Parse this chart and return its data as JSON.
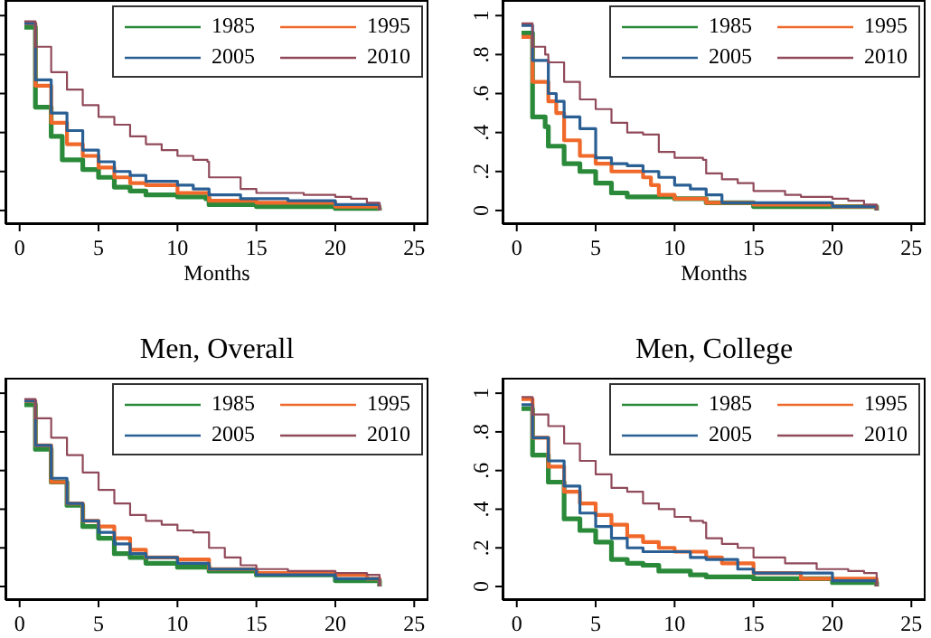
{
  "chart_data": [
    {
      "type": "step",
      "xlabel": "Months",
      "xlim": [
        -0.9,
        25.9
      ],
      "xticks": [
        0,
        5,
        10,
        15,
        20,
        25
      ],
      "ylim": [
        -0.07,
        1.08
      ],
      "yticks": [
        {
          "value": 0,
          "label": null
        },
        {
          "value": 0.2,
          "label": null
        },
        {
          "value": 0.4,
          "label": null
        },
        {
          "value": 0.6,
          "label": null
        },
        {
          "value": 0.8,
          "label": null
        },
        {
          "value": 1,
          "label": null
        }
      ],
      "tick_labels": "x",
      "legend": "top right",
      "marker": "none",
      "line_style": "solid",
      "series": [
        {
          "name": "1985",
          "color": "#2a8a3a",
          "x": [
            0.3,
            1,
            2,
            2.7,
            4,
            5,
            6,
            7,
            8,
            10,
            11.8,
            12,
            15,
            20,
            22.8
          ],
          "values": [
            0.94,
            0.53,
            0.38,
            0.26,
            0.21,
            0.17,
            0.12,
            0.1,
            0.08,
            0.07,
            0.06,
            0.03,
            0.02,
            0.01,
            0
          ]
        },
        {
          "name": "1995",
          "color": "#f0692a",
          "x": [
            0.3,
            1,
            2,
            3,
            4,
            5,
            6,
            7,
            8,
            10,
            12,
            15,
            20,
            22.8
          ],
          "values": [
            0.96,
            0.64,
            0.45,
            0.34,
            0.28,
            0.22,
            0.17,
            0.14,
            0.13,
            0.09,
            0.05,
            0.04,
            0.02,
            0
          ]
        },
        {
          "name": "2005",
          "color": "#2a5f94",
          "x": [
            0.3,
            1,
            2,
            3,
            4,
            5,
            6,
            7,
            8,
            10,
            11,
            12,
            14,
            17,
            20,
            22.8
          ],
          "values": [
            0.96,
            0.67,
            0.5,
            0.41,
            0.31,
            0.25,
            0.2,
            0.18,
            0.15,
            0.13,
            0.11,
            0.08,
            0.06,
            0.05,
            0.03,
            0
          ]
        },
        {
          "name": "2010",
          "color": "#904a5a",
          "x": [
            0.3,
            1,
            2,
            3,
            4,
            5,
            6,
            7,
            8,
            9,
            10,
            11,
            11.9,
            12,
            14,
            15,
            18,
            20,
            21,
            22,
            22.8
          ],
          "values": [
            0.97,
            0.84,
            0.71,
            0.62,
            0.54,
            0.48,
            0.44,
            0.38,
            0.34,
            0.31,
            0.28,
            0.26,
            0.25,
            0.17,
            0.11,
            0.09,
            0.08,
            0.07,
            0.06,
            0.04,
            0
          ]
        }
      ]
    },
    {
      "type": "step",
      "xlabel": "Months",
      "xlim": [
        -0.9,
        25.9
      ],
      "xticks": [
        0,
        5,
        10,
        15,
        20,
        25
      ],
      "ylim": [
        -0.07,
        1.08
      ],
      "yticks": [
        {
          "value": 0,
          "label": "0"
        },
        {
          "value": 0.2,
          "label": ".2"
        },
        {
          "value": 0.4,
          "label": ".4"
        },
        {
          "value": 0.6,
          "label": ".6"
        },
        {
          "value": 0.8,
          "label": ".8"
        },
        {
          "value": 1,
          "label": "1"
        }
      ],
      "legend": "top right",
      "marker": "none",
      "line_style": "solid",
      "series": [
        {
          "name": "1985",
          "color": "#2a8a3a",
          "x": [
            0.3,
            1,
            1.8,
            2,
            3,
            4,
            5,
            6,
            7,
            10,
            12,
            15,
            22.8
          ],
          "values": [
            0.91,
            0.48,
            0.43,
            0.33,
            0.24,
            0.2,
            0.14,
            0.09,
            0.07,
            0.06,
            0.04,
            0.02,
            0
          ]
        },
        {
          "name": "1995",
          "color": "#f0692a",
          "x": [
            0.3,
            1,
            2,
            2.5,
            3,
            4,
            5,
            6,
            8,
            8.5,
            9,
            10,
            12,
            15,
            20,
            22.8
          ],
          "values": [
            0.89,
            0.66,
            0.56,
            0.5,
            0.36,
            0.28,
            0.24,
            0.2,
            0.17,
            0.13,
            0.08,
            0.06,
            0.04,
            0.03,
            0.02,
            0
          ]
        },
        {
          "name": "2005",
          "color": "#2a5f94",
          "x": [
            0.3,
            1,
            2,
            2.5,
            3,
            4,
            5,
            6,
            7,
            8,
            9,
            10,
            11,
            12,
            13,
            15,
            20,
            22.8
          ],
          "values": [
            0.95,
            0.77,
            0.6,
            0.56,
            0.48,
            0.42,
            0.27,
            0.24,
            0.23,
            0.2,
            0.17,
            0.13,
            0.11,
            0.08,
            0.04,
            0.04,
            0.02,
            0
          ]
        },
        {
          "name": "2010",
          "color": "#904a5a",
          "x": [
            0.3,
            1,
            1.8,
            2,
            3,
            4,
            5,
            6,
            7,
            8,
            9,
            10,
            11.8,
            12,
            13,
            14,
            15,
            17,
            18,
            20,
            21,
            22,
            22.8
          ],
          "values": [
            0.96,
            0.84,
            0.8,
            0.76,
            0.66,
            0.57,
            0.52,
            0.45,
            0.4,
            0.39,
            0.3,
            0.27,
            0.26,
            0.19,
            0.16,
            0.14,
            0.1,
            0.08,
            0.07,
            0.06,
            0.05,
            0.03,
            0
          ]
        }
      ]
    },
    {
      "type": "step",
      "title": "Men, Overall",
      "xlim": [
        -0.9,
        25.9
      ],
      "xticks": [
        0,
        5,
        10,
        15,
        20,
        25
      ],
      "ylim": [
        -0.07,
        1.08
      ],
      "yticks": [
        {
          "value": 0,
          "label": null
        },
        {
          "value": 0.2,
          "label": null
        },
        {
          "value": 0.4,
          "label": null
        },
        {
          "value": 0.6,
          "label": null
        },
        {
          "value": 0.8,
          "label": null
        },
        {
          "value": 1,
          "label": null
        }
      ],
      "tick_labels": "x",
      "legend": "top right",
      "marker": "none",
      "line_style": "solid",
      "series": [
        {
          "name": "1985",
          "color": "#2a8a3a",
          "x": [
            0.3,
            1,
            2,
            3,
            4,
            5,
            6,
            7,
            8,
            10,
            12,
            15,
            20,
            22.8
          ],
          "values": [
            0.94,
            0.71,
            0.54,
            0.42,
            0.31,
            0.25,
            0.17,
            0.15,
            0.12,
            0.1,
            0.08,
            0.06,
            0.03,
            0
          ]
        },
        {
          "name": "1995",
          "color": "#f0692a",
          "x": [
            0.3,
            1,
            2,
            3,
            4,
            5,
            6,
            7,
            8,
            10,
            12,
            15,
            20,
            22,
            22.8
          ],
          "values": [
            0.96,
            0.73,
            0.54,
            0.43,
            0.34,
            0.31,
            0.25,
            0.19,
            0.15,
            0.14,
            0.09,
            0.07,
            0.06,
            0.04,
            0
          ]
        },
        {
          "name": "2005",
          "color": "#2a5f94",
          "x": [
            0.3,
            1,
            2,
            3,
            4,
            5,
            6,
            7,
            8,
            10,
            12,
            15,
            20,
            22.8
          ],
          "values": [
            0.96,
            0.73,
            0.56,
            0.43,
            0.34,
            0.28,
            0.22,
            0.17,
            0.15,
            0.12,
            0.09,
            0.06,
            0.04,
            0
          ]
        },
        {
          "name": "2010",
          "color": "#904a5a",
          "x": [
            0.3,
            1,
            2,
            3,
            4,
            5,
            6,
            7,
            8,
            9,
            10,
            11,
            12,
            13,
            14,
            15,
            17,
            20,
            22,
            22.8
          ],
          "values": [
            0.97,
            0.87,
            0.77,
            0.68,
            0.59,
            0.5,
            0.43,
            0.37,
            0.34,
            0.32,
            0.29,
            0.28,
            0.2,
            0.15,
            0.11,
            0.09,
            0.08,
            0.07,
            0.06,
            0
          ]
        }
      ]
    },
    {
      "type": "step",
      "title": "Men, College",
      "xlim": [
        -0.9,
        25.9
      ],
      "xticks": [
        0,
        5,
        10,
        15,
        20,
        25
      ],
      "ylim": [
        -0.07,
        1.08
      ],
      "yticks": [
        {
          "value": 0,
          "label": "0"
        },
        {
          "value": 0.2,
          "label": ".2"
        },
        {
          "value": 0.4,
          "label": ".4"
        },
        {
          "value": 0.6,
          "label": ".6"
        },
        {
          "value": 0.8,
          "label": ".8"
        },
        {
          "value": 1,
          "label": "1"
        }
      ],
      "legend": "top right",
      "marker": "none",
      "line_style": "solid",
      "series": [
        {
          "name": "1985",
          "color": "#2a8a3a",
          "x": [
            0.3,
            1,
            2,
            3,
            4,
            5,
            6,
            7,
            8,
            9,
            11,
            12,
            15,
            20,
            22.8
          ],
          "values": [
            0.92,
            0.68,
            0.54,
            0.35,
            0.29,
            0.23,
            0.14,
            0.12,
            0.11,
            0.08,
            0.06,
            0.05,
            0.04,
            0.02,
            0
          ]
        },
        {
          "name": "1995",
          "color": "#f0692a",
          "x": [
            0.3,
            1,
            2,
            3,
            4,
            5,
            6,
            7,
            8,
            9,
            10,
            12,
            13,
            15,
            18,
            22.8
          ],
          "values": [
            0.97,
            0.77,
            0.62,
            0.49,
            0.43,
            0.37,
            0.32,
            0.26,
            0.23,
            0.2,
            0.18,
            0.15,
            0.12,
            0.07,
            0.04,
            0
          ]
        },
        {
          "name": "2005",
          "color": "#2a5f94",
          "x": [
            0.3,
            1,
            2,
            3,
            4,
            5,
            6,
            7,
            8,
            10,
            11,
            12,
            14,
            15,
            20,
            22.8
          ],
          "values": [
            0.94,
            0.77,
            0.65,
            0.52,
            0.38,
            0.31,
            0.25,
            0.2,
            0.18,
            0.18,
            0.15,
            0.14,
            0.09,
            0.07,
            0.03,
            0
          ]
        },
        {
          "name": "2010",
          "color": "#904a5a",
          "x": [
            0.3,
            1,
            2,
            3,
            4,
            5,
            6,
            7,
            8,
            9,
            10,
            11,
            11.8,
            12,
            13,
            14,
            15,
            17,
            19,
            21,
            22,
            22.8
          ],
          "values": [
            0.98,
            0.89,
            0.83,
            0.74,
            0.65,
            0.58,
            0.51,
            0.49,
            0.43,
            0.4,
            0.36,
            0.34,
            0.33,
            0.25,
            0.22,
            0.2,
            0.15,
            0.12,
            0.09,
            0.08,
            0.07,
            0
          ]
        }
      ]
    }
  ]
}
